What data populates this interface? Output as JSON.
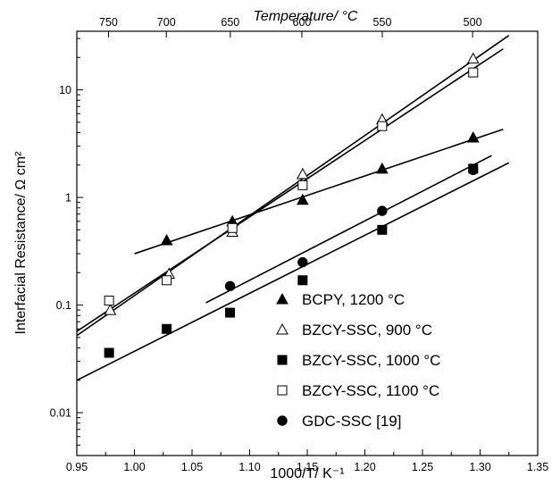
{
  "chart_data": {
    "type": "scatter",
    "xlabel": "1000/T/ K⁻¹",
    "ylabel": "Interfacial Resistance/ Ω cm²",
    "top_axis_label": "Temperature/ °C",
    "xlim": [
      0.95,
      1.35
    ],
    "ylim": [
      0.004,
      35
    ],
    "y_scale": "log",
    "grid": false,
    "legend_position": "bottom-right",
    "x_ticks": [
      "0.95",
      "1.00",
      "1.05",
      "1.10",
      "1.15",
      "1.20",
      "1.25",
      "1.30",
      "1.35"
    ],
    "y_ticks": [
      "0.01",
      "0.1",
      "1",
      "10"
    ],
    "top_ticks": [
      {
        "label": "750",
        "x": 0.9775
      },
      {
        "label": "700",
        "x": 1.0277
      },
      {
        "label": "650",
        "x": 1.0832
      },
      {
        "label": "600",
        "x": 1.1453
      },
      {
        "label": "550",
        "x": 1.2151
      },
      {
        "label": "500",
        "x": 1.2935
      }
    ],
    "series": [
      {
        "name": "BCPY, 1200 °C",
        "marker": "triangle-filled",
        "points": [
          [
            1.028,
            0.4
          ],
          [
            1.085,
            0.6
          ],
          [
            1.146,
            0.95
          ],
          [
            1.215,
            1.85
          ],
          [
            1.294,
            3.6
          ]
        ],
        "fit": [
          [
            1.0,
            0.3
          ],
          [
            1.32,
            4.3
          ]
        ]
      },
      {
        "name": "BZCY-SSC, 900 °C",
        "marker": "triangle-open",
        "points": [
          [
            0.979,
            0.09
          ],
          [
            1.03,
            0.195
          ],
          [
            1.085,
            0.48
          ],
          [
            1.146,
            1.65
          ],
          [
            1.215,
            5.3
          ],
          [
            1.294,
            19.5
          ]
        ],
        "fit": [
          [
            0.95,
            0.057
          ],
          [
            1.32,
            24
          ]
        ]
      },
      {
        "name": "BZCY-SSC, 1000 °C",
        "marker": "square-filled",
        "points": [
          [
            0.978,
            0.036
          ],
          [
            1.028,
            0.06
          ],
          [
            1.083,
            0.085
          ],
          [
            1.146,
            0.17
          ],
          [
            1.215,
            0.5
          ],
          [
            1.294,
            1.85
          ]
        ],
        "fit": [
          [
            0.95,
            0.02
          ],
          [
            1.325,
            2.1
          ]
        ]
      },
      {
        "name": "BZCY-SSC, 1100 °C",
        "marker": "square-open",
        "points": [
          [
            0.978,
            0.11
          ],
          [
            1.028,
            0.17
          ],
          [
            1.085,
            0.52
          ],
          [
            1.146,
            1.3
          ],
          [
            1.215,
            4.6
          ],
          [
            1.294,
            14.5
          ]
        ],
        "fit": [
          [
            0.95,
            0.052
          ],
          [
            1.325,
            32
          ]
        ]
      },
      {
        "name": "GDC-SSC [19]",
        "marker": "circle-filled",
        "points": [
          [
            1.083,
            0.15
          ],
          [
            1.146,
            0.25
          ],
          [
            1.215,
            0.75
          ],
          [
            1.294,
            1.8
          ]
        ],
        "fit": [
          [
            1.062,
            0.105
          ],
          [
            1.31,
            2.45
          ]
        ]
      }
    ]
  }
}
